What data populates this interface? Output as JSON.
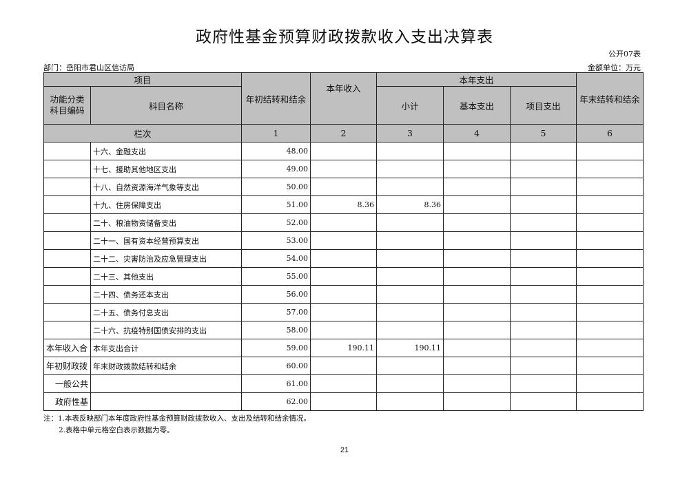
{
  "title": "政府性基金预算财政拨款收入支出决算表",
  "code": "公开07表",
  "department": "部门：岳阳市君山区信访局",
  "unit": "金额单位：万元",
  "header": {
    "item": "项目",
    "func_code": "功能分类科目编码",
    "subject": "科目名称",
    "begin": "年初结转和结余",
    "income": "本年收入",
    "expense": "本年支出",
    "subtotal": "小计",
    "basic": "基本支出",
    "project": "项目支出",
    "end": "年末结转和结余",
    "seq": "栏次",
    "c1": "1",
    "c2": "2",
    "c3": "3",
    "c4": "4",
    "c5": "5",
    "c6": "6"
  },
  "rows": [
    {
      "a": "",
      "b": "十六、金融支出",
      "c": "48.00",
      "d": "",
      "e": "",
      "f": "",
      "g": "",
      "h": ""
    },
    {
      "a": "",
      "b": "十七、援助其他地区支出",
      "c": "49.00",
      "d": "",
      "e": "",
      "f": "",
      "g": "",
      "h": ""
    },
    {
      "a": "",
      "b": "十八、自然资源海洋气象等支出",
      "c": "50.00",
      "d": "",
      "e": "",
      "f": "",
      "g": "",
      "h": ""
    },
    {
      "a": "",
      "b": "十九、住房保障支出",
      "c": "51.00",
      "d": "8.36",
      "e": "8.36",
      "f": "",
      "g": "",
      "h": ""
    },
    {
      "a": "",
      "b": "二十、粮油物资储备支出",
      "c": "52.00",
      "d": "",
      "e": "",
      "f": "",
      "g": "",
      "h": ""
    },
    {
      "a": "",
      "b": "二十一、国有资本经营预算支出",
      "c": "53.00",
      "d": "",
      "e": "",
      "f": "",
      "g": "",
      "h": ""
    },
    {
      "a": "",
      "b": "二十二、灾害防治及应急管理支出",
      "c": "54.00",
      "d": "",
      "e": "",
      "f": "",
      "g": "",
      "h": ""
    },
    {
      "a": "",
      "b": "二十三、其他支出",
      "c": "55.00",
      "d": "",
      "e": "",
      "f": "",
      "g": "",
      "h": ""
    },
    {
      "a": "",
      "b": "二十四、债务还本支出",
      "c": "56.00",
      "d": "",
      "e": "",
      "f": "",
      "g": "",
      "h": ""
    },
    {
      "a": "",
      "b": "二十五、债务付息支出",
      "c": "57.00",
      "d": "",
      "e": "",
      "f": "",
      "g": "",
      "h": ""
    },
    {
      "a": "",
      "b": "二十六、抗疫特别国债安排的支出",
      "c": "58.00",
      "d": "",
      "e": "",
      "f": "",
      "g": "",
      "h": ""
    },
    {
      "a": "本年收入合",
      "b": "本年支出合计",
      "c": "59.00",
      "d": "190.11",
      "e": "190.11",
      "f": "",
      "g": "",
      "h": ""
    },
    {
      "a": "年初财政拨",
      "b": "年末财政拨款结转和结余",
      "c": "60.00",
      "d": "",
      "e": "",
      "f": "",
      "g": "",
      "h": ""
    },
    {
      "a": "一般公共",
      "b": "",
      "c": "61.00",
      "d": "",
      "e": "",
      "f": "",
      "g": "",
      "h": "",
      "indent": true
    },
    {
      "a": "政府性基",
      "b": "",
      "c": "62.00",
      "d": "",
      "e": "",
      "f": "",
      "g": "",
      "h": "",
      "indent": true
    }
  ],
  "notes": [
    "注：1.本表反映部门本年度政府性基金预算财政拨款收入、支出及结转和结余情况。",
    "2.表格中单元格空白表示数据为零。"
  ],
  "page_number": "21"
}
